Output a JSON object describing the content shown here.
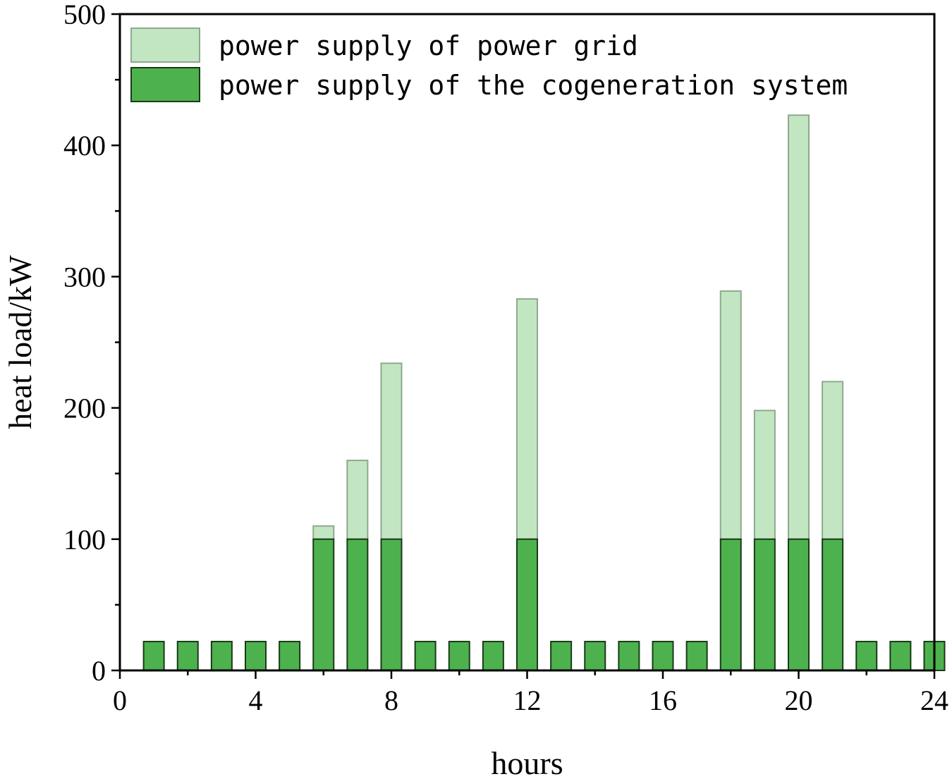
{
  "chart_data": {
    "type": "bar",
    "stacked": true,
    "title": "",
    "xlabel": "hours",
    "ylabel": "heat load/kW",
    "xlim": [
      0,
      24
    ],
    "ylim": [
      0,
      500
    ],
    "x_ticks": [
      "0",
      "4",
      "8",
      "12",
      "16",
      "20",
      "24"
    ],
    "y_ticks": [
      "0",
      "100",
      "200",
      "300",
      "400",
      "500"
    ],
    "grid": false,
    "legend_position": "top-left",
    "x": [
      1,
      2,
      3,
      4,
      5,
      6,
      7,
      8,
      9,
      10,
      11,
      12,
      13,
      14,
      15,
      16,
      17,
      18,
      19,
      20,
      21,
      22,
      23,
      24
    ],
    "series": [
      {
        "name": "power supply of the cogeneration system",
        "color": "#4db24d",
        "values": [
          22,
          22,
          22,
          22,
          22,
          100,
          100,
          100,
          22,
          22,
          22,
          100,
          22,
          22,
          22,
          22,
          22,
          100,
          100,
          100,
          100,
          22,
          22,
          22
        ]
      },
      {
        "name": "power supply of power grid",
        "color": "#c2e6c2",
        "values": [
          0,
          0,
          0,
          0,
          0,
          10,
          60,
          134,
          0,
          0,
          0,
          183,
          0,
          0,
          0,
          0,
          0,
          189,
          98,
          323,
          120,
          0,
          0,
          0
        ]
      }
    ]
  }
}
